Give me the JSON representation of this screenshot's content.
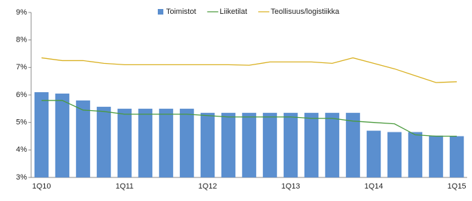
{
  "chart_data": {
    "type": "bar_line",
    "categories": [
      "1Q10",
      null,
      null,
      null,
      "1Q11",
      null,
      null,
      null,
      "1Q12",
      null,
      null,
      null,
      "1Q13",
      null,
      null,
      null,
      "1Q14",
      null,
      null,
      null,
      "1Q15"
    ],
    "series": [
      {
        "name": "Toimistot",
        "kind": "bar",
        "color": "#5b8fcf",
        "values": [
          6.1,
          6.05,
          5.8,
          5.57,
          5.5,
          5.5,
          5.5,
          5.5,
          5.35,
          5.35,
          5.35,
          5.35,
          5.35,
          5.35,
          5.35,
          5.35,
          4.7,
          4.65,
          4.65,
          4.52,
          4.5
        ]
      },
      {
        "name": "Liiketilat",
        "kind": "line",
        "color": "#4a9a3c",
        "values": [
          5.8,
          5.8,
          5.45,
          5.4,
          5.3,
          5.3,
          5.3,
          5.3,
          5.25,
          5.2,
          5.2,
          5.2,
          5.2,
          5.15,
          5.15,
          5.05,
          5.0,
          4.95,
          4.55,
          4.5,
          4.5
        ]
      },
      {
        "name": "Teollisuus/logistiikka",
        "kind": "line",
        "color": "#d9b020",
        "values": [
          7.35,
          7.25,
          7.25,
          7.15,
          7.1,
          7.1,
          7.1,
          7.1,
          7.1,
          7.1,
          7.08,
          7.2,
          7.2,
          7.2,
          7.15,
          7.35,
          7.15,
          6.95,
          6.7,
          6.45,
          6.48
        ]
      }
    ],
    "ylim": [
      3,
      9
    ],
    "yticks": [
      {
        "value": 3,
        "label": "3%"
      },
      {
        "value": 4,
        "label": "4%"
      },
      {
        "value": 5,
        "label": "5%"
      },
      {
        "value": 6,
        "label": "6%"
      },
      {
        "value": 7,
        "label": "7%"
      },
      {
        "value": 8,
        "label": "8%"
      },
      {
        "value": 9,
        "label": "9%"
      }
    ],
    "legend": "top"
  }
}
